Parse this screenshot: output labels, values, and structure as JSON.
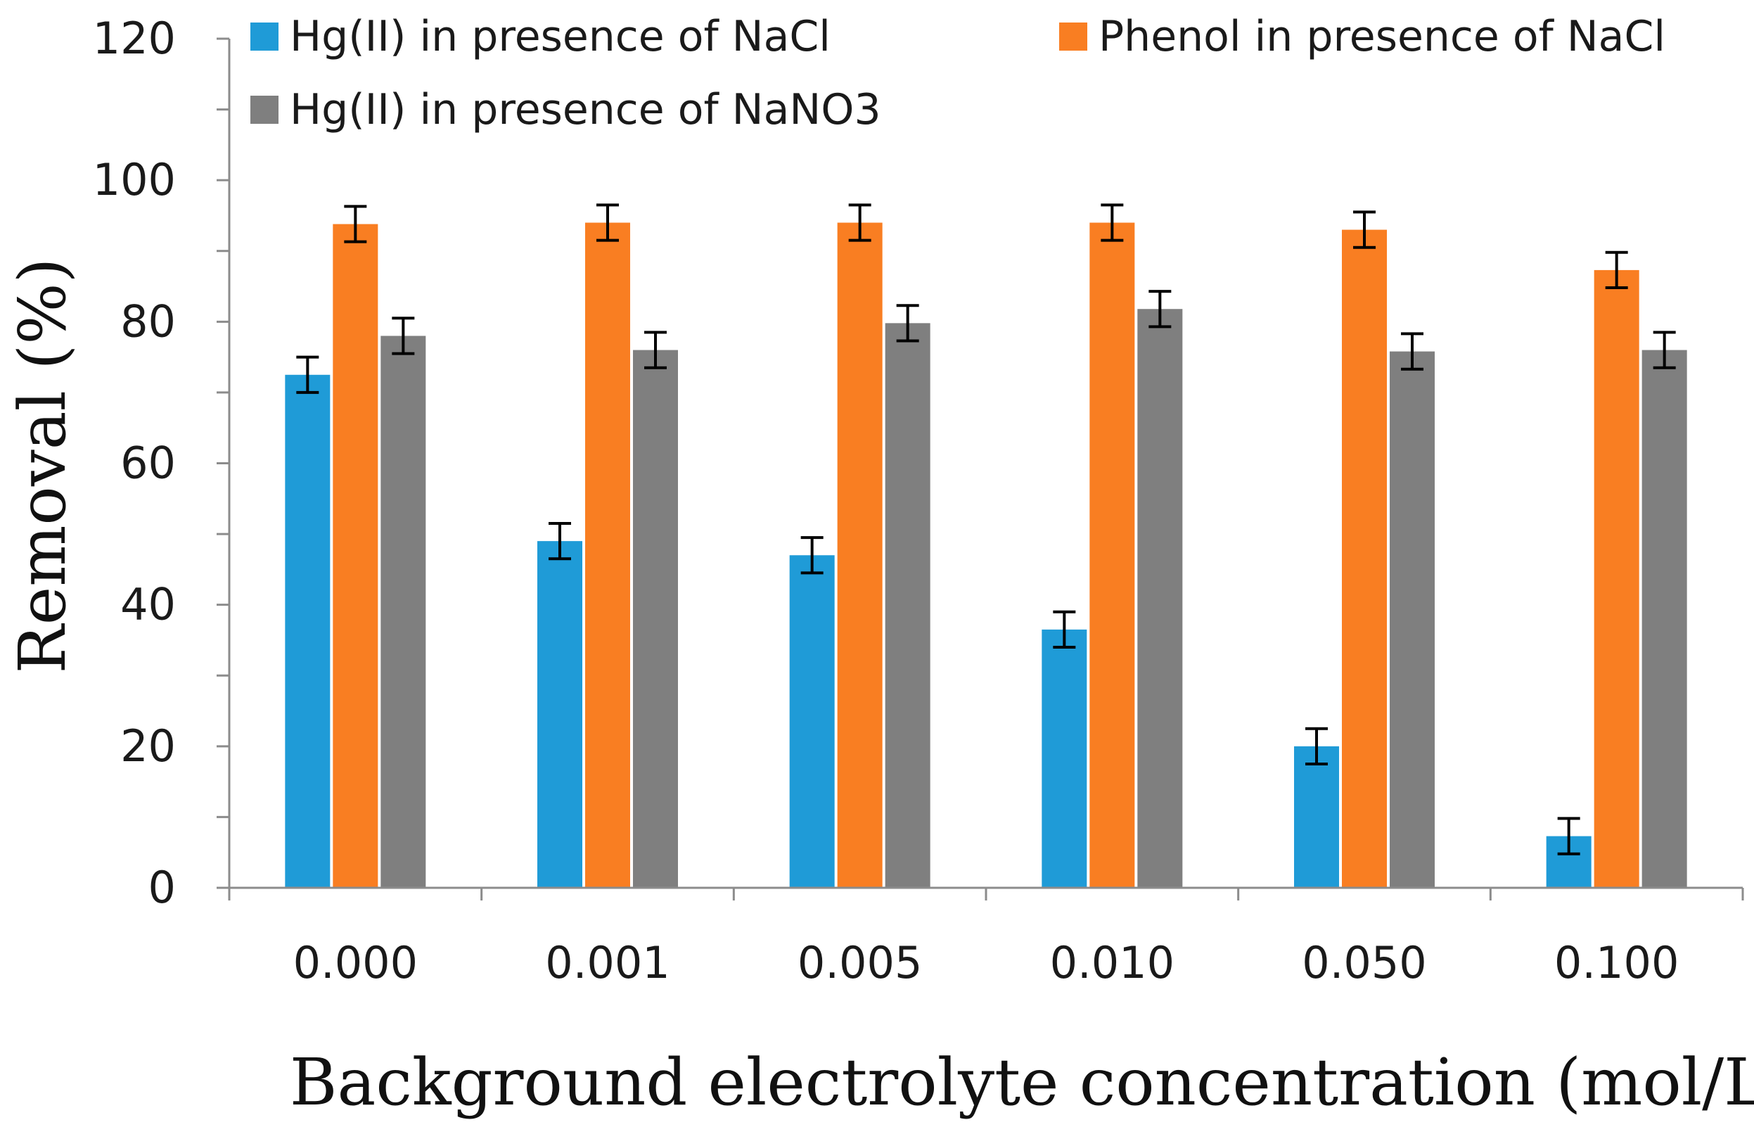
{
  "chart_data": {
    "type": "bar",
    "title": "",
    "xlabel": "Background electrolyte concentration (mol/L)",
    "ylabel": "Removal (%)",
    "ylim": [
      0,
      120
    ],
    "yticks": [
      "0",
      "20",
      "40",
      "60",
      "80",
      "100",
      "120"
    ],
    "categories": [
      "0.000",
      "0.001",
      "0.005",
      "0.010",
      "0.050",
      "0.100"
    ],
    "legend_position": "top",
    "grid": false,
    "series": [
      {
        "name": "Hg(II) in presence of NaCl",
        "color": "#1f9bd7",
        "values": [
          72.5,
          49,
          47,
          36.5,
          20,
          7.3
        ],
        "errors": [
          2.5,
          2.5,
          2.5,
          2.5,
          2.5,
          2.5
        ]
      },
      {
        "name": "Phenol in presence of NaCl",
        "color": "#f97e22",
        "values": [
          93.8,
          94,
          94,
          94,
          93,
          87.3
        ],
        "errors": [
          2.5,
          2.5,
          2.5,
          2.5,
          2.5,
          2.5
        ]
      },
      {
        "name": "Hg(II) in presence of NaNO3",
        "color": "#7f7f7f",
        "values": [
          78,
          76,
          79.8,
          81.8,
          75.8,
          76
        ],
        "errors": [
          2.5,
          2.5,
          2.5,
          2.5,
          2.5,
          2.5
        ]
      }
    ]
  }
}
